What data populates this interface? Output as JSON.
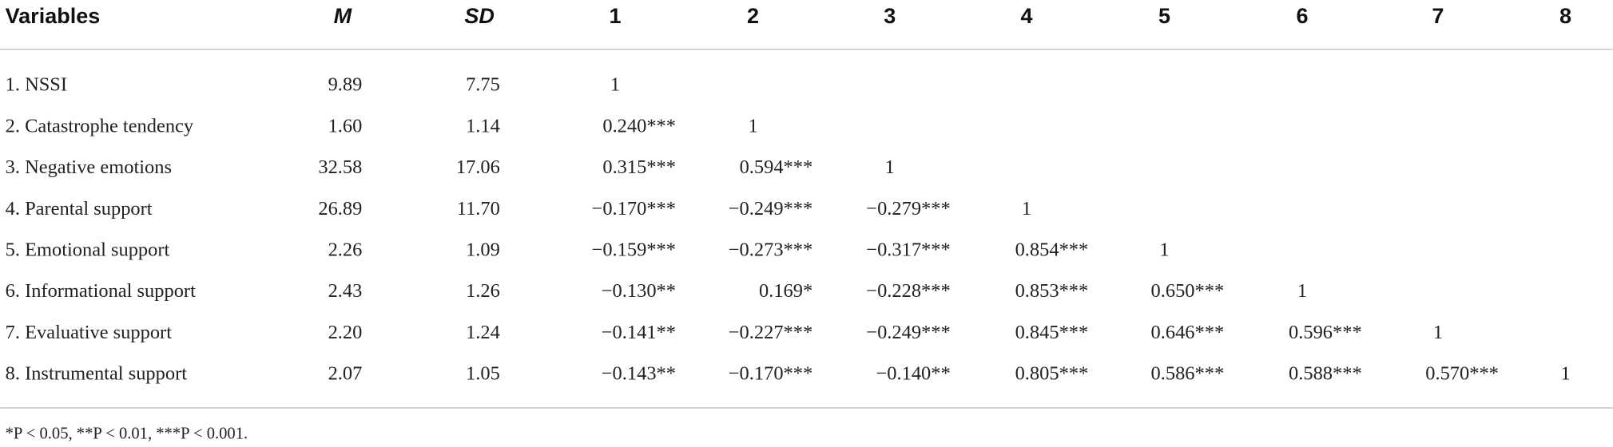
{
  "table": {
    "headers": [
      "Variables",
      "M",
      "SD",
      "1",
      "2",
      "3",
      "4",
      "5",
      "6",
      "7",
      "8"
    ],
    "rows": [
      [
        "1. NSSI",
        "9.89",
        "7.75",
        "1"
      ],
      [
        "2. Catastrophe tendency",
        "1.60",
        "1.14",
        "0.240***",
        "1"
      ],
      [
        "3. Negative emotions",
        "32.58",
        "17.06",
        "0.315***",
        "0.594***",
        "1"
      ],
      [
        "4. Parental support",
        "26.89",
        "11.70",
        "−0.170***",
        "−0.249***",
        "−0.279***",
        "1"
      ],
      [
        "5. Emotional support",
        "2.26",
        "1.09",
        "−0.159***",
        "−0.273***",
        "−0.317***",
        "0.854***",
        "1"
      ],
      [
        "6. Informational support",
        "2.43",
        "1.26",
        "−0.130**",
        "0.169*",
        "−0.228***",
        "0.853***",
        "0.650***",
        "1"
      ],
      [
        "7. Evaluative support",
        "2.20",
        "1.24",
        "−0.141**",
        "−0.227***",
        "−0.249***",
        "0.845***",
        "0.646***",
        "0.596***",
        "1"
      ],
      [
        "8. Instrumental support",
        "2.07",
        "1.05",
        "−0.143**",
        "−0.170***",
        "−0.140**",
        "0.805***",
        "0.586***",
        "0.588***",
        "0.570***",
        "1"
      ]
    ],
    "footnote": "*P < 0.05, **P < 0.01, ***P < 0.001."
  }
}
